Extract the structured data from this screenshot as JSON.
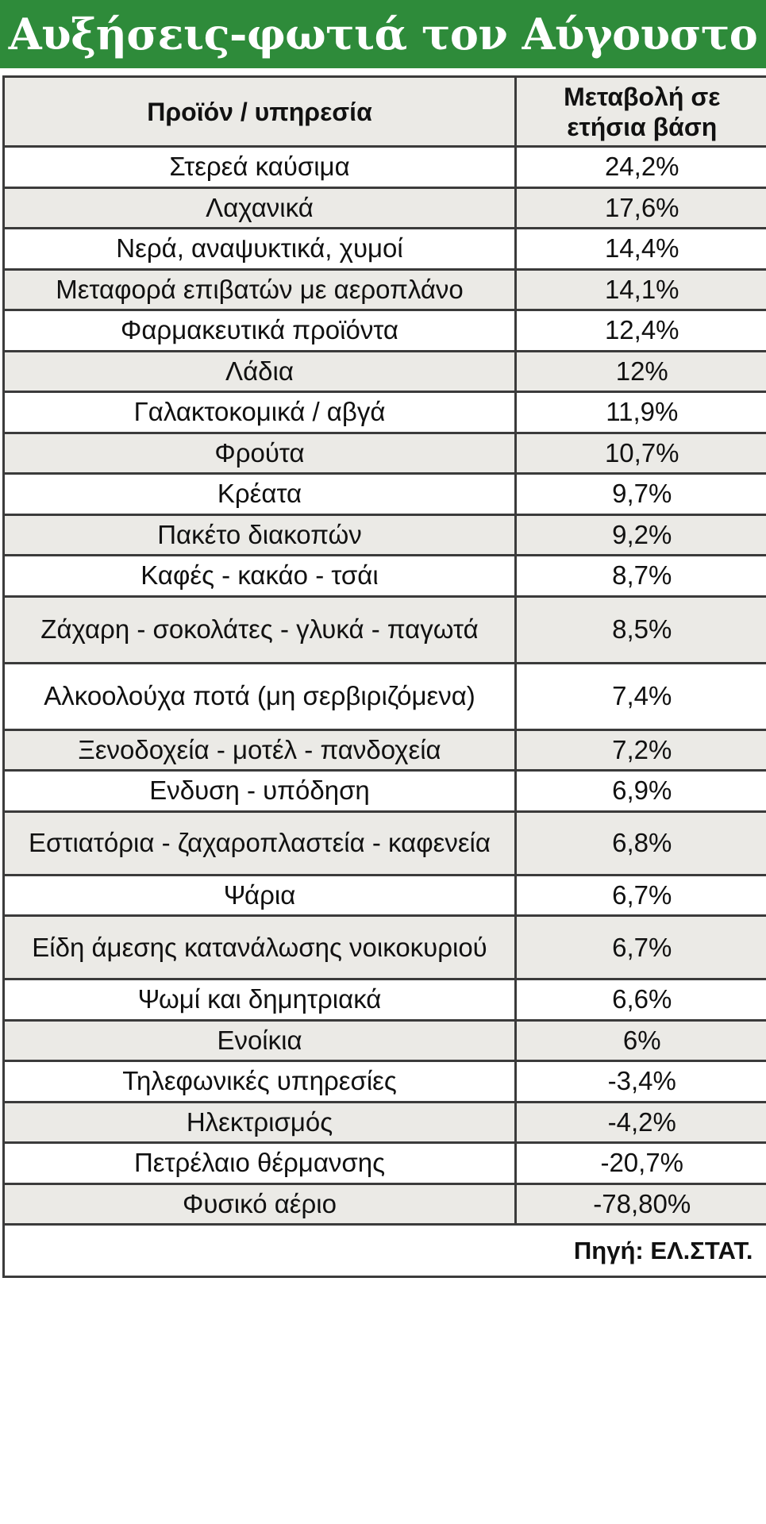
{
  "title": "Αυξήσεις-φωτιά τον Αύγουστο",
  "colors": {
    "header_green": "#2e8b3a",
    "row_shade": "#ebeae6",
    "border": "#3b3b3b"
  },
  "chart_data": {
    "type": "table",
    "columns": [
      "Προϊόν / υπηρεσία",
      "Μεταβολή σε ετήσια βάση"
    ],
    "rows": [
      {
        "item": "Στερεά καύσιμα",
        "value": "24,2%"
      },
      {
        "item": "Λαχανικά",
        "value": "17,6%"
      },
      {
        "item": "Νερά, αναψυκτικά, χυμοί",
        "value": "14,4%"
      },
      {
        "item": "Μεταφορά επιβατών με αεροπλάνο",
        "value": "14,1%"
      },
      {
        "item": "Φαρμακευτικά προϊόντα",
        "value": "12,4%"
      },
      {
        "item": "Λάδια",
        "value": "12%"
      },
      {
        "item": "Γαλακτοκομικά / αβγά",
        "value": "11,9%"
      },
      {
        "item": "Φρούτα",
        "value": "10,7%"
      },
      {
        "item": "Κρέατα",
        "value": "9,7%"
      },
      {
        "item": "Πακέτο διακοπών",
        "value": "9,2%"
      },
      {
        "item": "Καφές - κακάο - τσάι",
        "value": "8,7%"
      },
      {
        "item": "Ζάχαρη - σοκολάτες - γλυκά - παγωτά",
        "value": "8,5%"
      },
      {
        "item": "Αλκοολούχα ποτά (μη σερβιριζόμενα)",
        "value": "7,4%"
      },
      {
        "item": "Ξενοδοχεία - μοτέλ - πανδοχεία",
        "value": "7,2%"
      },
      {
        "item": "Ενδυση - υπόδηση",
        "value": "6,9%"
      },
      {
        "item": "Εστιατόρια - ζαχαροπλαστεία - καφενεία",
        "value": "6,8%"
      },
      {
        "item": "Ψάρια",
        "value": "6,7%"
      },
      {
        "item": "Είδη άμεσης κατανάλωσης νοικοκυριού",
        "value": "6,7%"
      },
      {
        "item": "Ψωμί και δημητριακά",
        "value": "6,6%"
      },
      {
        "item": "Ενοίκια",
        "value": "6%"
      },
      {
        "item": "Τηλεφωνικές υπηρεσίες",
        "value": "-3,4%"
      },
      {
        "item": "Ηλεκτρισμός",
        "value": "-4,2%"
      },
      {
        "item": "Πετρέλαιο θέρμανσης",
        "value": "-20,7%"
      },
      {
        "item": "Φυσικό αέριο",
        "value": "-78,80%"
      }
    ],
    "source": "Πηγή: ΕΛ.ΣΤΑΤ."
  }
}
